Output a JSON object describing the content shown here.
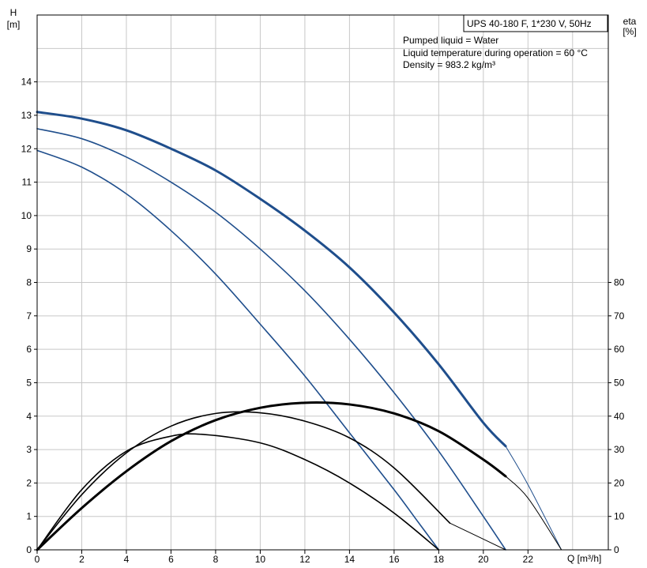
{
  "chart_data": {
    "type": "line",
    "title": "UPS 40-180 F, 1*230 V, 50Hz",
    "info_lines": [
      "Pumped liquid = Water",
      "Liquid temperature during operation = 60 °C",
      "Density = 983.2 kg/m³"
    ],
    "x_axis": {
      "label": "Q [m³/h]",
      "range": [
        0,
        25.6
      ],
      "ticks": [
        0,
        2,
        4,
        6,
        8,
        10,
        12,
        14,
        16,
        18,
        20,
        22
      ]
    },
    "y_left": {
      "label_top": "H",
      "label_unit": "[m]",
      "range": [
        0,
        16.0
      ],
      "ticks": [
        0,
        1,
        2,
        3,
        4,
        5,
        6,
        7,
        8,
        9,
        10,
        11,
        12,
        13,
        14
      ]
    },
    "y_right": {
      "label_top": "eta",
      "label_unit": "[%]",
      "range": [
        0,
        160
      ],
      "ticks": [
        0,
        10,
        20,
        30,
        40,
        50,
        60,
        70,
        80
      ]
    },
    "grid": true,
    "series": [
      {
        "kind": "head",
        "axis": "left",
        "color": "#1f4e8c",
        "weight": "bold",
        "x": [
          0,
          2,
          4,
          6,
          8,
          10,
          12,
          14,
          16,
          18,
          20,
          21
        ],
        "y": [
          13.1,
          12.9,
          12.55,
          12.0,
          11.35,
          10.5,
          9.55,
          8.45,
          7.1,
          5.55,
          3.8,
          3.1
        ],
        "extension": {
          "x": [
            21,
            22,
            23.5
          ],
          "y": [
            3.1,
            1.95,
            0
          ]
        }
      },
      {
        "kind": "head",
        "axis": "left",
        "color": "#1f4e8c",
        "weight": "normal",
        "x": [
          0,
          2,
          4,
          6,
          8,
          10,
          12,
          14,
          16,
          18,
          20,
          21
        ],
        "y": [
          12.6,
          12.3,
          11.75,
          11.0,
          10.1,
          9.0,
          7.75,
          6.3,
          4.7,
          2.95,
          1.0,
          0
        ]
      },
      {
        "kind": "head",
        "axis": "left",
        "color": "#1f4e8c",
        "weight": "normal",
        "x": [
          0,
          2,
          4,
          6,
          8,
          10,
          12,
          14,
          16,
          17,
          18
        ],
        "y": [
          11.95,
          11.45,
          10.65,
          9.55,
          8.25,
          6.75,
          5.2,
          3.5,
          1.8,
          0.9,
          0
        ]
      },
      {
        "kind": "efficiency",
        "axis": "right",
        "color": "#000000",
        "weight": "bold",
        "x": [
          0,
          2,
          4,
          6,
          8,
          10,
          12,
          14,
          16,
          18,
          20,
          21
        ],
        "y": [
          0,
          12.5,
          23.5,
          32.5,
          38.8,
          42.5,
          44.0,
          43.5,
          40.8,
          35.5,
          27.0,
          22.0
        ],
        "extension": {
          "x": [
            21,
            22,
            23.5
          ],
          "y": [
            22.0,
            15.5,
            0
          ]
        }
      },
      {
        "kind": "efficiency",
        "axis": "right",
        "color": "#000000",
        "weight": "normal",
        "x": [
          0,
          2,
          4,
          6,
          8,
          10,
          12,
          14,
          16,
          18.5
        ],
        "y": [
          0,
          16.5,
          29.0,
          37.0,
          40.8,
          41.0,
          38.5,
          33.5,
          24.5,
          8.0
        ],
        "extension": {
          "x": [
            18.5,
            21
          ],
          "y": [
            8.0,
            0
          ]
        }
      },
      {
        "kind": "efficiency",
        "axis": "right",
        "color": "#000000",
        "weight": "normal",
        "x": [
          0,
          2,
          4,
          6,
          7.5,
          10,
          12,
          14,
          16,
          18
        ],
        "y": [
          0,
          18.0,
          29.5,
          34.0,
          34.5,
          32.0,
          27.0,
          20.0,
          11.0,
          0
        ]
      }
    ]
  }
}
